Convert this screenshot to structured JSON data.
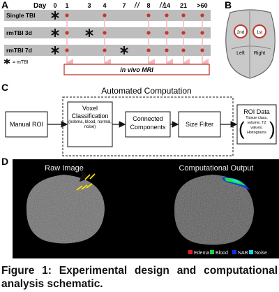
{
  "panel_a": {
    "letter": "A",
    "day_label": "Day",
    "days": [
      "0",
      "1",
      "3",
      "4",
      "7",
      "8",
      "14",
      "21",
      ">60"
    ],
    "rows": [
      "Single TBI",
      "rmTBI 3d",
      "rmTBI 7d"
    ],
    "legend": "= mTBI",
    "mri_label": "in vivo MRI"
  },
  "panel_b": {
    "letter": "B",
    "first": "1st",
    "second": "2nd",
    "left": "Left",
    "right": "Right"
  },
  "panel_c": {
    "letter": "C",
    "title": "Automated Computation",
    "manual_roi": "Manual ROI",
    "voxel": "Voxel Classification",
    "voxel_sub": "(edema, blood, normal, noise)",
    "connected": "Connected Components",
    "size_filter": "Size Filter",
    "roi_data": "ROI Data",
    "roi_sub": "Tissue class, volume, T2 values, Histograms"
  },
  "panel_d": {
    "letter": "D",
    "raw": "Raw Image",
    "output": "Computational Output",
    "legend": [
      "Edema",
      "Blood",
      "NAB",
      "Noise"
    ]
  },
  "caption": "Figure 1: Experimental design and computational analysis schematic."
}
